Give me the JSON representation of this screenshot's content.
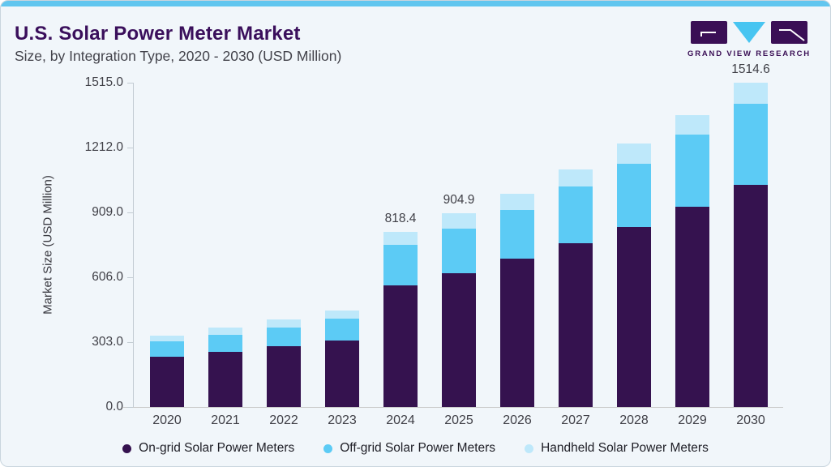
{
  "header": {
    "title": "U.S. Solar Power Meter Market",
    "subtitle": "Size, by Integration Type, 2020 - 2030 (USD Million)"
  },
  "logo": {
    "text": "GRAND VIEW RESEARCH"
  },
  "colors": {
    "card_background": "#F1F6FA",
    "card_border": "#C9D5DE",
    "top_accent_bar": "#61C6EF",
    "title_purple": "#3A0F5B",
    "logo_purple": "#3A0F55",
    "logo_triangle_blue": "#48C5F1",
    "axis_line": "#C2CBD2",
    "axis_text": "#3F3F46"
  },
  "chart_data": {
    "type": "bar",
    "stacked": true,
    "title": "U.S. Solar Power Meter Market Size, by Integration Type, 2020 - 2030 (USD Million)",
    "categories": [
      "2020",
      "2021",
      "2022",
      "2023",
      "2024",
      "2025",
      "2026",
      "2027",
      "2028",
      "2029",
      "2030"
    ],
    "series": [
      {
        "name": "On-grid Solar Power Meters",
        "color": "#35124F",
        "values": [
          234.9,
          258.9,
          282.9,
          312.4,
          568.3,
          625.3,
          691.9,
          765.0,
          842.1,
          935.6,
          1039.2
        ]
      },
      {
        "name": "Off-grid Solar Power Meters",
        "color": "#5CCBF5",
        "values": [
          73.5,
          77.5,
          89.5,
          99.9,
          190.2,
          208.9,
          227.7,
          263.7,
          295.6,
          335.6,
          375.5
        ]
      },
      {
        "name": "Handheld Solar Power Meters",
        "color": "#BEE8FA",
        "values": [
          24.0,
          33.2,
          37.2,
          37.2,
          59.9,
          70.7,
          77.1,
          79.9,
          93.5,
          93.0,
          99.9
        ]
      }
    ],
    "annotations": [
      {
        "category": "2024",
        "label": "818.4"
      },
      {
        "category": "2025",
        "label": "904.9"
      },
      {
        "category": "2030",
        "label": "1514.6"
      }
    ],
    "xlabel": "",
    "ylabel": "Market Size (USD Million)",
    "yticks": [
      0,
      303,
      606,
      909,
      1212,
      1515
    ],
    "ytick_labels": [
      "0.0",
      "303.0",
      "606.0",
      "909.0",
      "1212.0",
      "1515.0"
    ],
    "ylim": [
      0,
      1515
    ],
    "grid": false,
    "legend_position": "bottom"
  }
}
